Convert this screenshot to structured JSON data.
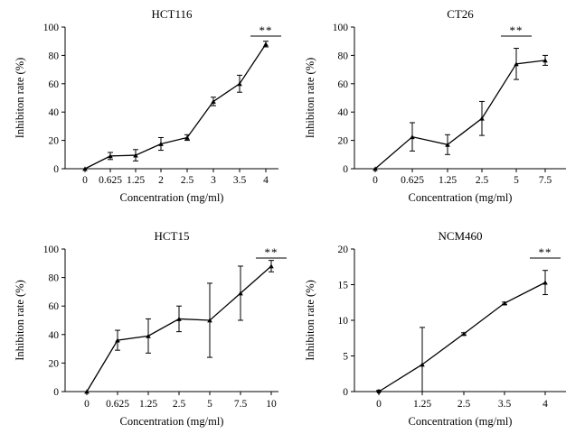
{
  "chart_data": [
    {
      "type": "line",
      "title": "HCT116",
      "xlabel": "Concentration (mg/ml)",
      "ylabel": "Inhibiton rate (%)",
      "categories": [
        "0",
        "0.625",
        "1.25",
        "2",
        "2.5",
        "3",
        "3.5",
        "4"
      ],
      "values": [
        0,
        9,
        9.5,
        17.5,
        22,
        47.5,
        60,
        88
      ],
      "errors": [
        0,
        2.5,
        4,
        4.5,
        2,
        3,
        6,
        2
      ],
      "ylim": [
        0,
        100
      ],
      "yticks": [
        0,
        20,
        40,
        60,
        80,
        100
      ],
      "significance": {
        "label": "**",
        "category": "4"
      }
    },
    {
      "type": "line",
      "title": "CT26",
      "xlabel": "Concentration (mg/ml)",
      "ylabel": "Inhibiton rate (%)",
      "categories": [
        "0",
        "0.625",
        "1.25",
        "2.5",
        "5",
        "7.5"
      ],
      "values": [
        0,
        22.5,
        17,
        35.5,
        74,
        76.5
      ],
      "errors": [
        0,
        10,
        7,
        12,
        11,
        3.5
      ],
      "ylim": [
        0,
        100
      ],
      "yticks": [
        0,
        20,
        40,
        60,
        80,
        100
      ],
      "significance": {
        "label": "**",
        "category": "5"
      }
    },
    {
      "type": "line",
      "title": "HCT15",
      "xlabel": "Concentration (mg/ml)",
      "ylabel": "Inhibiton rate (%)",
      "categories": [
        "0",
        "0.625",
        "1.25",
        "2.5",
        "5",
        "7.5",
        "10"
      ],
      "values": [
        0,
        36,
        39,
        51,
        50,
        69,
        88
      ],
      "errors": [
        0,
        7,
        12,
        9,
        26,
        19,
        4
      ],
      "ylim": [
        0,
        100
      ],
      "yticks": [
        0,
        20,
        40,
        60,
        80,
        100
      ],
      "significance": {
        "label": "**",
        "category": "10"
      }
    },
    {
      "type": "line",
      "title": "NCM460",
      "xlabel": "Concentration (mg/ml)",
      "ylabel": "Inhibiton rate (%)",
      "categories": [
        "0",
        "1.25",
        "2.5",
        "3.5",
        "4"
      ],
      "values": [
        0,
        3.8,
        8.1,
        12.4,
        15.3
      ],
      "errors": [
        0.15,
        5.2,
        0.15,
        0.15,
        1.7
      ],
      "ylim": [
        0,
        20
      ],
      "yticks": [
        0,
        5,
        10,
        15,
        20
      ],
      "significance": {
        "label": "**",
        "category": "4"
      }
    }
  ]
}
